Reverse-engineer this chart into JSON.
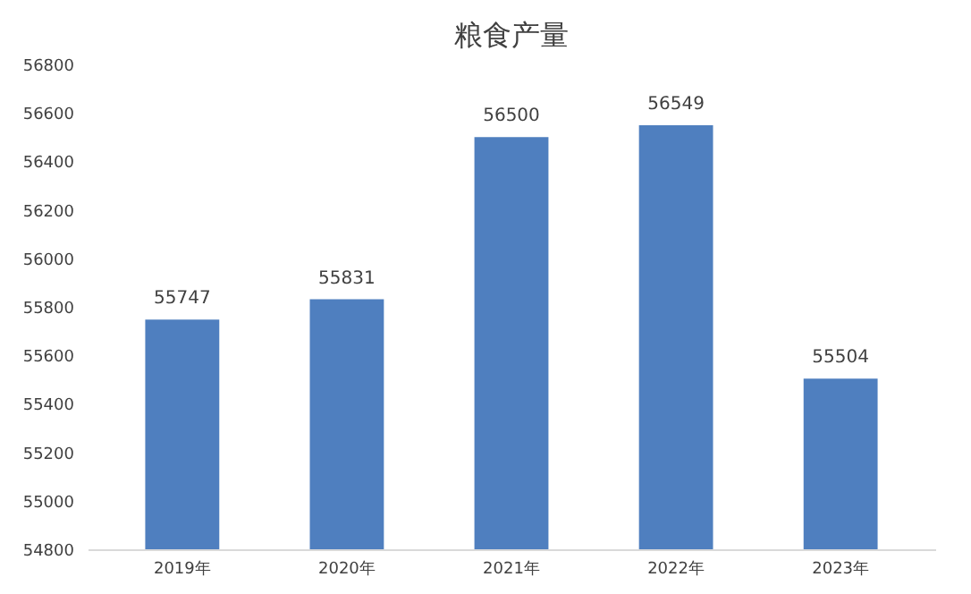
{
  "chart_data": {
    "type": "bar",
    "title": "粮食产量",
    "categories": [
      "2019年",
      "2020年",
      "2021年",
      "2022年",
      "2023年"
    ],
    "values": [
      55747,
      55831,
      56500,
      56549,
      55504
    ],
    "color": "#4f7fbf",
    "ylim": [
      54800,
      56800
    ],
    "yticks": [
      54800,
      55000,
      55200,
      55400,
      55600,
      55800,
      56000,
      56200,
      56400,
      56600,
      56800
    ],
    "grid": false,
    "data_labels": true
  }
}
